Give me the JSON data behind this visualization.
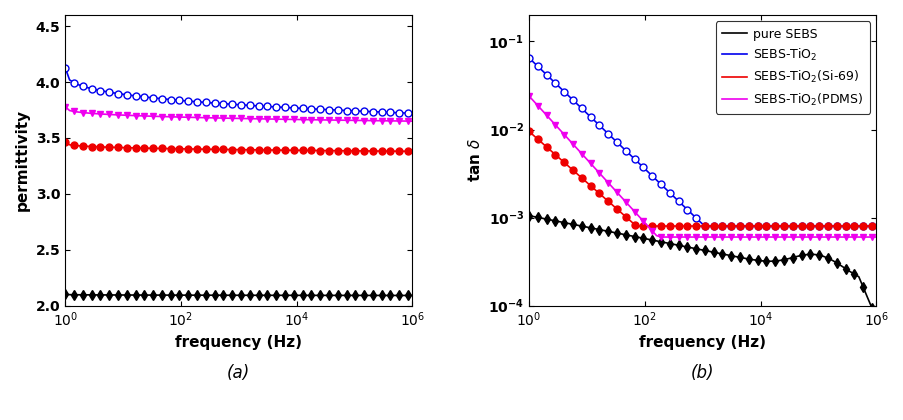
{
  "freq_range": [
    1,
    1000000.0
  ],
  "n_points": 80,
  "left_ylim": [
    2.0,
    4.6
  ],
  "left_yticks": [
    2.0,
    2.5,
    3.0,
    3.5,
    4.0,
    4.5
  ],
  "right_ylim": [
    0.0001,
    0.2
  ],
  "right_yticks": [
    0.0001,
    0.001,
    0.01,
    0.1
  ],
  "xticks_log": [
    1,
    100,
    10000,
    1000000
  ],
  "xtick_labels": [
    "$10^0$",
    "$10^2$",
    "$10^4$",
    "$10^6$"
  ],
  "xlabel": "frequency (Hz)",
  "left_ylabel": "permittivity",
  "right_ylabel": "tan $\\delta$",
  "label_a": "(a)",
  "label_b": "(b)",
  "colors": {
    "black": "#000000",
    "blue": "#0000EE",
    "red": "#EE0000",
    "magenta": "#EE00EE"
  },
  "legend_labels": [
    "pure SEBS",
    "SEBS-TiO$_2$",
    "SEBS-TiO$_2$(Si-69)",
    "SEBS-TiO$_2$(PDMS)"
  ]
}
